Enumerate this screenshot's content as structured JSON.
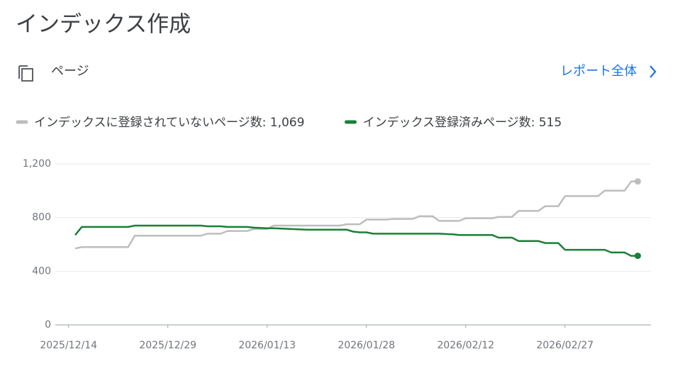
{
  "header": {
    "title": "インデックス作成",
    "section": "ページ",
    "link": "レポート全体"
  },
  "chart_data": {
    "type": "line",
    "x": [
      "2025/12/15",
      "2025/12/16",
      "2025/12/23",
      "2025/12/24",
      "2026/01/03",
      "2026/01/04",
      "2026/01/06",
      "2026/01/07",
      "2026/01/10",
      "2026/01/11",
      "2026/01/13",
      "2026/01/14",
      "2026/01/19",
      "2026/01/24",
      "2026/01/25",
      "2026/01/26",
      "2026/01/27",
      "2026/01/28",
      "2026/01/29",
      "2026/01/31",
      "2026/02/01",
      "2026/02/04",
      "2026/02/05",
      "2026/02/07",
      "2026/02/08",
      "2026/02/10",
      "2026/02/11",
      "2026/02/12",
      "2026/02/16",
      "2026/02/17",
      "2026/02/19",
      "2026/02/20",
      "2026/02/23",
      "2026/02/24",
      "2026/02/26",
      "2026/02/27",
      "2026/03/04",
      "2026/03/05",
      "2026/03/06",
      "2026/03/08",
      "2026/03/09",
      "2026/03/10"
    ],
    "series": [
      {
        "name": "インデックスに登録されていないページ数: 1,069",
        "color": "#bdbdbd",
        "values": [
          570,
          580,
          580,
          665,
          665,
          680,
          680,
          700,
          700,
          715,
          715,
          740,
          740,
          740,
          750,
          750,
          750,
          785,
          785,
          785,
          790,
          790,
          810,
          810,
          775,
          775,
          775,
          795,
          795,
          805,
          805,
          850,
          850,
          885,
          885,
          960,
          960,
          1000,
          1000,
          1000,
          1069,
          1069
        ]
      },
      {
        "name": "インデックス登録済みページ数: 515",
        "color": "#188038",
        "values": [
          670,
          730,
          730,
          740,
          740,
          735,
          735,
          730,
          730,
          725,
          720,
          720,
          710,
          710,
          710,
          695,
          690,
          690,
          680,
          680,
          680,
          680,
          680,
          680,
          680,
          675,
          670,
          670,
          670,
          650,
          650,
          625,
          625,
          610,
          610,
          560,
          560,
          560,
          540,
          540,
          515,
          515
        ]
      }
    ],
    "xlim": [
      "2025/12/12",
      "2026/03/12"
    ],
    "xticks": [
      "2025/12/14",
      "2025/12/29",
      "2026/01/13",
      "2026/01/28",
      "2026/02/12",
      "2026/02/27"
    ],
    "ylim": [
      0,
      1200
    ],
    "yticks": [
      0,
      400,
      800,
      {
        "value": 1200,
        "label": "1,200"
      }
    ],
    "grid": true
  }
}
